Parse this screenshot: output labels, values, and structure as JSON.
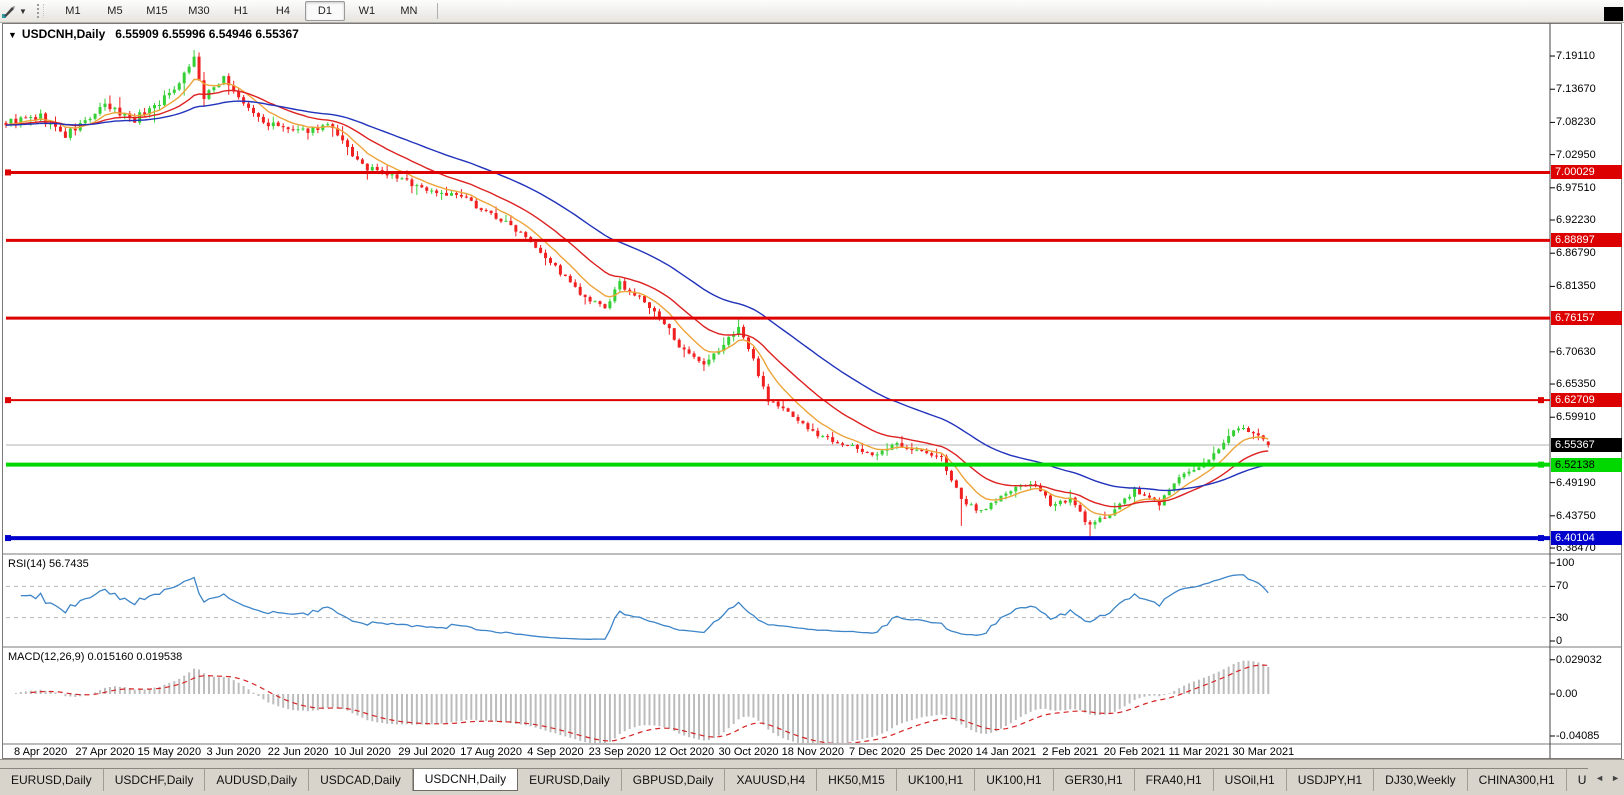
{
  "icons": {
    "title_caret": "▼",
    "toolbar_caret": "▼",
    "tab_scroll_left": "◄",
    "tab_scroll_right": "►"
  },
  "toolbar": {
    "timeframes": [
      "M1",
      "M5",
      "M15",
      "M30",
      "H1",
      "H4",
      "D1",
      "W1",
      "MN"
    ],
    "active_timeframe": "D1"
  },
  "chart": {
    "title": "USDCNH,Daily",
    "ohlc": "6.55909 6.55996 6.54946 6.55367"
  },
  "price_axis": {
    "ticks": [
      "7.19110",
      "7.13670",
      "7.08230",
      "7.02950",
      "6.97510",
      "6.92230",
      "6.86790",
      "6.81350",
      "6.70630",
      "6.65350",
      "6.59910",
      "6.49190",
      "6.43750",
      "6.38470"
    ],
    "badges": [
      {
        "label": "7.00029",
        "bg": "#dd0000",
        "fg": "#ffffff"
      },
      {
        "label": "6.88897",
        "bg": "#dd0000",
        "fg": "#ffffff"
      },
      {
        "label": "6.76157",
        "bg": "#dd0000",
        "fg": "#ffffff"
      },
      {
        "label": "6.62709",
        "bg": "#dd0000",
        "fg": "#ffffff"
      },
      {
        "label": "6.55367",
        "bg": "#000000",
        "fg": "#ffffff"
      },
      {
        "label": "6.52138",
        "bg": "#00d800",
        "fg": "#000000"
      },
      {
        "label": "6.40104",
        "bg": "#0000cc",
        "fg": "#ffffff"
      }
    ]
  },
  "chart_data": {
    "type": "candlestick",
    "symbol": "USDCNH",
    "period": "Daily",
    "current": {
      "open": 6.55909,
      "high": 6.55996,
      "low": 6.54946,
      "close": 6.55367
    },
    "ylim": [
      6.3782,
      7.2403
    ],
    "candle_count": 256,
    "seed": 9,
    "close_jitter": 0.0045,
    "wick_size": 0.0055,
    "close_anchors": [
      [
        0,
        7.082
      ],
      [
        7,
        7.091
      ],
      [
        12,
        7.06
      ],
      [
        20,
        7.108
      ],
      [
        26,
        7.088
      ],
      [
        33,
        7.128
      ],
      [
        38,
        7.188
      ],
      [
        40,
        7.12
      ],
      [
        44,
        7.158
      ],
      [
        47,
        7.12
      ],
      [
        52,
        7.082
      ],
      [
        59,
        7.066
      ],
      [
        65,
        7.078
      ],
      [
        72,
        7.01
      ],
      [
        79,
        6.992
      ],
      [
        85,
        6.972
      ],
      [
        92,
        6.96
      ],
      [
        98,
        6.932
      ],
      [
        105,
        6.898
      ],
      [
        111,
        6.845
      ],
      [
        117,
        6.792
      ],
      [
        121,
        6.778
      ],
      [
        124,
        6.818
      ],
      [
        129,
        6.788
      ],
      [
        134,
        6.742
      ],
      [
        137,
        6.706
      ],
      [
        141,
        6.682
      ],
      [
        145,
        6.718
      ],
      [
        148,
        6.748
      ],
      [
        151,
        6.692
      ],
      [
        154,
        6.628
      ],
      [
        159,
        6.602
      ],
      [
        163,
        6.574
      ],
      [
        169,
        6.556
      ],
      [
        176,
        6.536
      ],
      [
        180,
        6.556
      ],
      [
        185,
        6.542
      ],
      [
        189,
        6.532
      ],
      [
        193,
        6.462
      ],
      [
        197,
        6.446
      ],
      [
        202,
        6.474
      ],
      [
        207,
        6.492
      ],
      [
        211,
        6.458
      ],
      [
        215,
        6.464
      ],
      [
        219,
        6.42
      ],
      [
        223,
        6.442
      ],
      [
        228,
        6.478
      ],
      [
        233,
        6.458
      ],
      [
        237,
        6.502
      ],
      [
        241,
        6.514
      ],
      [
        245,
        6.55
      ],
      [
        249,
        6.584
      ],
      [
        252,
        6.572
      ],
      [
        255,
        6.5537
      ]
    ],
    "volatility_anchors": [
      [
        0,
        1.6
      ],
      [
        30,
        1.5
      ],
      [
        60,
        1.15
      ],
      [
        100,
        1.0
      ],
      [
        140,
        1.05
      ],
      [
        170,
        0.8
      ],
      [
        200,
        1.0
      ],
      [
        230,
        0.9
      ],
      [
        255,
        0.75
      ]
    ],
    "spikes": [
      {
        "i": 38,
        "high": 7.1911
      },
      {
        "i": 148,
        "high": 6.7616
      },
      {
        "i": 193,
        "low": 6.421
      },
      {
        "i": 219,
        "low": 6.401
      }
    ],
    "up_color": "#35d035",
    "down_color": "#f02020",
    "ma_periods": {
      "fast": 8,
      "mid": 20,
      "slow": 45
    },
    "ma_colors": {
      "fast": "#eda43a",
      "mid": "#dd2222",
      "slow": "#2233bb"
    },
    "hlines": [
      {
        "price": 7.00029,
        "color": "#dd0000",
        "width": 3,
        "handles": [
          "left"
        ]
      },
      {
        "price": 6.88897,
        "color": "#dd0000",
        "width": 3,
        "handles": []
      },
      {
        "price": 6.76157,
        "color": "#dd0000",
        "width": 3,
        "handles": []
      },
      {
        "price": 6.62709,
        "color": "#dd0000",
        "width": 2,
        "handles": [
          "left",
          "right"
        ]
      },
      {
        "price": 6.52138,
        "color": "#00d800",
        "width": 4,
        "handles": [
          "right"
        ]
      },
      {
        "price": 6.40104,
        "color": "#0000cc",
        "width": 4,
        "handles": [
          "left",
          "right"
        ]
      }
    ],
    "current_price_line": {
      "price": 6.55367,
      "color": "#b3b3b3"
    },
    "x_dates": [
      "8 Apr 2020",
      "27 Apr 2020",
      "15 May 2020",
      "3 Jun 2020",
      "22 Jun 2020",
      "10 Jul 2020",
      "29 Jul 2020",
      "17 Aug 2020",
      "4 Sep 2020",
      "23 Sep 2020",
      "12 Oct 2020",
      "30 Oct 2020",
      "18 Nov 2020",
      "7 Dec 2020",
      "25 Dec 2020",
      "14 Jan 2021",
      "2 Feb 2021",
      "20 Feb 2021",
      "11 Mar 2021",
      "30 Mar 2021"
    ],
    "bars_per_tick": 13,
    "first_tick_index": 7
  },
  "rsi": {
    "label": "RSI(14) 56.7435",
    "period": 14,
    "value": "56.7435",
    "line_color": "#3d85c8",
    "level_line_color": "#b5b5b5",
    "scale": [
      {
        "v": 100,
        "label": "100"
      },
      {
        "v": 70,
        "label": "70"
      },
      {
        "v": 30,
        "label": "30"
      },
      {
        "v": 0,
        "label": "0"
      }
    ],
    "dashed_levels": [
      70,
      30
    ]
  },
  "macd": {
    "label": "MACD(12,26,9) 0.015160 0.019538",
    "main_value": "0.015160",
    "signal_value": "0.019538",
    "bar_color": "#bcbcbc",
    "signal_color": "#d42424",
    "scale": [
      {
        "v": 0.029032,
        "label": "0.029032"
      },
      {
        "v": 0,
        "label": "0.00"
      },
      {
        "v": -0.04085,
        "label": "-0.04085"
      }
    ]
  },
  "tabs": {
    "items": [
      "EURUSD,Daily",
      "USDCHF,Daily",
      "AUDUSD,Daily",
      "USDCAD,Daily",
      "USDCNH,Daily",
      "EURUSD,Daily",
      "GBPUSD,Daily",
      "XAUUSD,H4",
      "HK50,M15",
      "UK100,H1",
      "UK100,H1",
      "GER30,H1",
      "FRA40,H1",
      "USOil,H1",
      "USDJPY,H1",
      "DJ30,Weekly",
      "CHINA300,H1",
      "U"
    ],
    "active_index": 4
  }
}
